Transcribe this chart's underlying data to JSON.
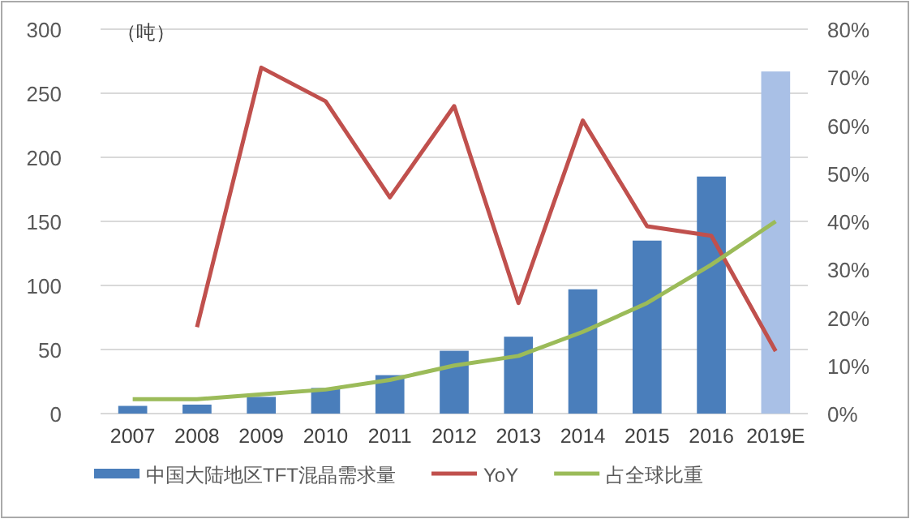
{
  "chart_data": {
    "type": "bar",
    "ylabel": "（吨）",
    "categories": [
      "2007",
      "2008",
      "2009",
      "2010",
      "2011",
      "2012",
      "2013",
      "2014",
      "2015",
      "2016",
      "2019E"
    ],
    "series": [
      {
        "name": "中国大陆地区TFT混晶需求量",
        "color": "#4a7ebb",
        "colors": [
          "#4a7ebb",
          "#4a7ebb",
          "#4a7ebb",
          "#4a7ebb",
          "#4a7ebb",
          "#4a7ebb",
          "#4a7ebb",
          "#4a7ebb",
          "#4a7ebb",
          "#4a7ebb",
          "#a9c0e6"
        ],
        "values": [
          6,
          7,
          13,
          20,
          30,
          49,
          60,
          97,
          135,
          185,
          267
        ]
      },
      {
        "name": "YoY",
        "type": "line",
        "axis": "y2",
        "color": "#c0504d",
        "values": [
          null,
          18,
          72,
          65,
          45,
          64,
          23,
          61,
          39,
          37,
          13
        ]
      },
      {
        "name": "占全球比重",
        "type": "line",
        "axis": "y2",
        "color": "#9bbb59",
        "values": [
          3,
          3,
          4,
          5,
          7,
          10,
          12,
          17,
          23,
          31,
          40
        ]
      }
    ],
    "ylim": [
      0,
      300
    ],
    "yticks": [
      0,
      50,
      100,
      150,
      200,
      250,
      300
    ],
    "y2lim": [
      0,
      80
    ],
    "y2ticks": [
      {
        "value": 0,
        "label": "0%"
      },
      {
        "value": 10,
        "label": "10%"
      },
      {
        "value": 20,
        "label": "20%"
      },
      {
        "value": 30,
        "label": "30%"
      },
      {
        "value": 40,
        "label": "40%"
      },
      {
        "value": 50,
        "label": "50%"
      },
      {
        "value": 60,
        "label": "60%"
      },
      {
        "value": 70,
        "label": "70%"
      },
      {
        "value": 80,
        "label": "80%"
      }
    ],
    "grid": "y",
    "legend": "bottom"
  }
}
